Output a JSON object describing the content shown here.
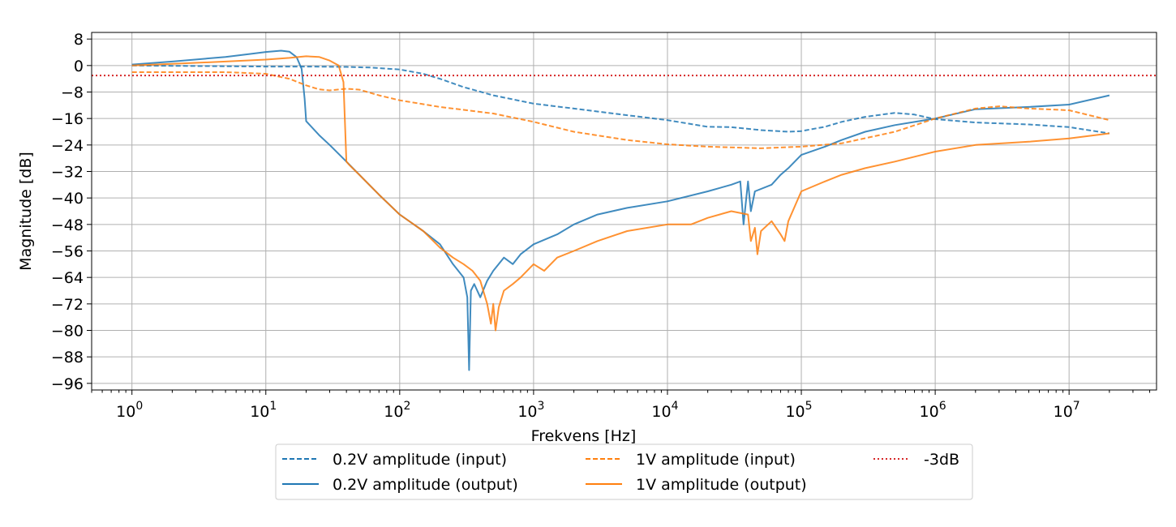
{
  "chart_data": {
    "type": "line",
    "xlabel": "Frekvens [Hz]",
    "ylabel": "Magnitude [dB]",
    "xscale": "log",
    "xlim": [
      0.5,
      45000000
    ],
    "ylim": [
      -98,
      10
    ],
    "grid": true,
    "legend_position": "bottom-center, below plot",
    "y_ticks": [
      8,
      0,
      -8,
      -16,
      -24,
      -32,
      -40,
      -48,
      -56,
      -64,
      -72,
      -80,
      -88,
      -96
    ],
    "y_tick_labels": [
      "8",
      "0",
      "−8",
      "−16",
      "−24",
      "−32",
      "−40",
      "−48",
      "−56",
      "−64",
      "−72",
      "−80",
      "−88",
      "−96"
    ],
    "x_ticks": [
      {
        "value": 1,
        "base": "10",
        "exp": "0"
      },
      {
        "value": 10,
        "base": "10",
        "exp": "1"
      },
      {
        "value": 100,
        "base": "10",
        "exp": "2"
      },
      {
        "value": 1000,
        "base": "10",
        "exp": "3"
      },
      {
        "value": 10000,
        "base": "10",
        "exp": "4"
      },
      {
        "value": 100000,
        "base": "10",
        "exp": "5"
      },
      {
        "value": 1000000,
        "base": "10",
        "exp": "6"
      },
      {
        "value": 10000000,
        "base": "10",
        "exp": "7"
      }
    ],
    "series": [
      {
        "name": "0.2V amplitude (input)",
        "color": "#1f77b4",
        "style": "dashed",
        "x": [
          1,
          2,
          5,
          10,
          20,
          40,
          60,
          100,
          150,
          200,
          300,
          500,
          1000,
          2000,
          5000,
          10000,
          20000,
          30000,
          50000,
          80000,
          100000,
          150000,
          200000,
          300000,
          500000,
          700000,
          1000000,
          2000000,
          5000000,
          10000000,
          20000000
        ],
        "y": [
          0,
          -0.1,
          -0.2,
          -0.3,
          -0.3,
          -0.4,
          -0.6,
          -1.2,
          -2.5,
          -4,
          -6.5,
          -9,
          -11.5,
          -13,
          -15,
          -16.5,
          -18.5,
          -18.6,
          -19.5,
          -20,
          -19.8,
          -18.5,
          -17,
          -15.5,
          -14.3,
          -14.8,
          -16.2,
          -17.2,
          -17.8,
          -18.6,
          -20.5
        ]
      },
      {
        "name": "0.2V amplitude (output)",
        "color": "#1f77b4",
        "style": "solid",
        "x": [
          1,
          2,
          5,
          8,
          10,
          13,
          15,
          17,
          18.5,
          19.5,
          20,
          25,
          30,
          40,
          50,
          70,
          100,
          150,
          200,
          250,
          300,
          320,
          330,
          340,
          360,
          400,
          450,
          500,
          600,
          700,
          800,
          1000,
          1500,
          2000,
          3000,
          5000,
          10000,
          20000,
          30000,
          35000,
          37000,
          40000,
          42000,
          45000,
          60000,
          70000,
          80000,
          100000,
          150000,
          200000,
          300000,
          500000,
          1000000,
          2000000,
          5000000,
          10000000,
          20000000
        ],
        "y": [
          0.3,
          1.2,
          2.6,
          3.6,
          4.1,
          4.5,
          4.2,
          2.5,
          -1,
          -10,
          -16.8,
          -21,
          -24,
          -29,
          -33,
          -39,
          -45,
          -50,
          -54,
          -60,
          -64,
          -70,
          -92,
          -68,
          -66,
          -70,
          -65,
          -62,
          -58,
          -60,
          -57,
          -54,
          -51,
          -48,
          -45,
          -43,
          -41,
          -38,
          -36,
          -35,
          -48,
          -35,
          -44,
          -38,
          -36,
          -33,
          -31,
          -27,
          -24.5,
          -22.5,
          -20,
          -18,
          -16,
          -13.2,
          -12.5,
          -11.8,
          -9
        ]
      },
      {
        "name": "1V amplitude (input)",
        "color": "#ff7f0e",
        "style": "dashed",
        "x": [
          1,
          5,
          10,
          15,
          20,
          25,
          30,
          40,
          50,
          70,
          100,
          200,
          500,
          1000,
          2000,
          5000,
          10000,
          20000,
          50000,
          100000,
          200000,
          500000,
          1000000,
          2000000,
          3000000,
          5000000,
          10000000,
          20000000
        ],
        "y": [
          -2,
          -2,
          -2.5,
          -4,
          -6,
          -7.2,
          -7.5,
          -7,
          -7.3,
          -9,
          -10.5,
          -12.5,
          -14.5,
          -17,
          -20,
          -22.5,
          -23.8,
          -24.5,
          -25,
          -24.5,
          -23.5,
          -20,
          -16,
          -13,
          -12.3,
          -13,
          -13.5,
          -16.5
        ]
      },
      {
        "name": "1V amplitude (output)",
        "color": "#ff7f0e",
        "style": "solid",
        "x": [
          1,
          2,
          5,
          10,
          15,
          20,
          25,
          30,
          35,
          38,
          40,
          42,
          50,
          70,
          100,
          150,
          200,
          250,
          300,
          350,
          400,
          450,
          480,
          500,
          520,
          550,
          600,
          700,
          800,
          1000,
          1200,
          1500,
          2000,
          3000,
          5000,
          10000,
          15000,
          20000,
          30000,
          40000,
          42000,
          45000,
          47000,
          50000,
          60000,
          70000,
          75000,
          80000,
          100000,
          150000,
          200000,
          300000,
          500000,
          1000000,
          2000000,
          5000000,
          10000000,
          20000000
        ],
        "y": [
          0,
          0.5,
          1.2,
          1.8,
          2.3,
          2.8,
          2.6,
          1.5,
          0,
          -5,
          -29,
          -30,
          -33,
          -39,
          -45,
          -50,
          -55,
          -58,
          -60,
          -62,
          -65,
          -72,
          -78,
          -72,
          -80,
          -73,
          -68,
          -66,
          -64,
          -60,
          -62,
          -58,
          -56,
          -53,
          -50,
          -48,
          -48,
          -46,
          -44,
          -45,
          -53,
          -49,
          -57,
          -50,
          -47,
          -51,
          -53,
          -47,
          -38,
          -35,
          -33,
          -31,
          -29,
          -26,
          -24,
          -23,
          -22,
          -20.5
        ]
      },
      {
        "name": "-3dB",
        "color": "#d62728",
        "style": "dotted",
        "hline": -3
      }
    ]
  }
}
